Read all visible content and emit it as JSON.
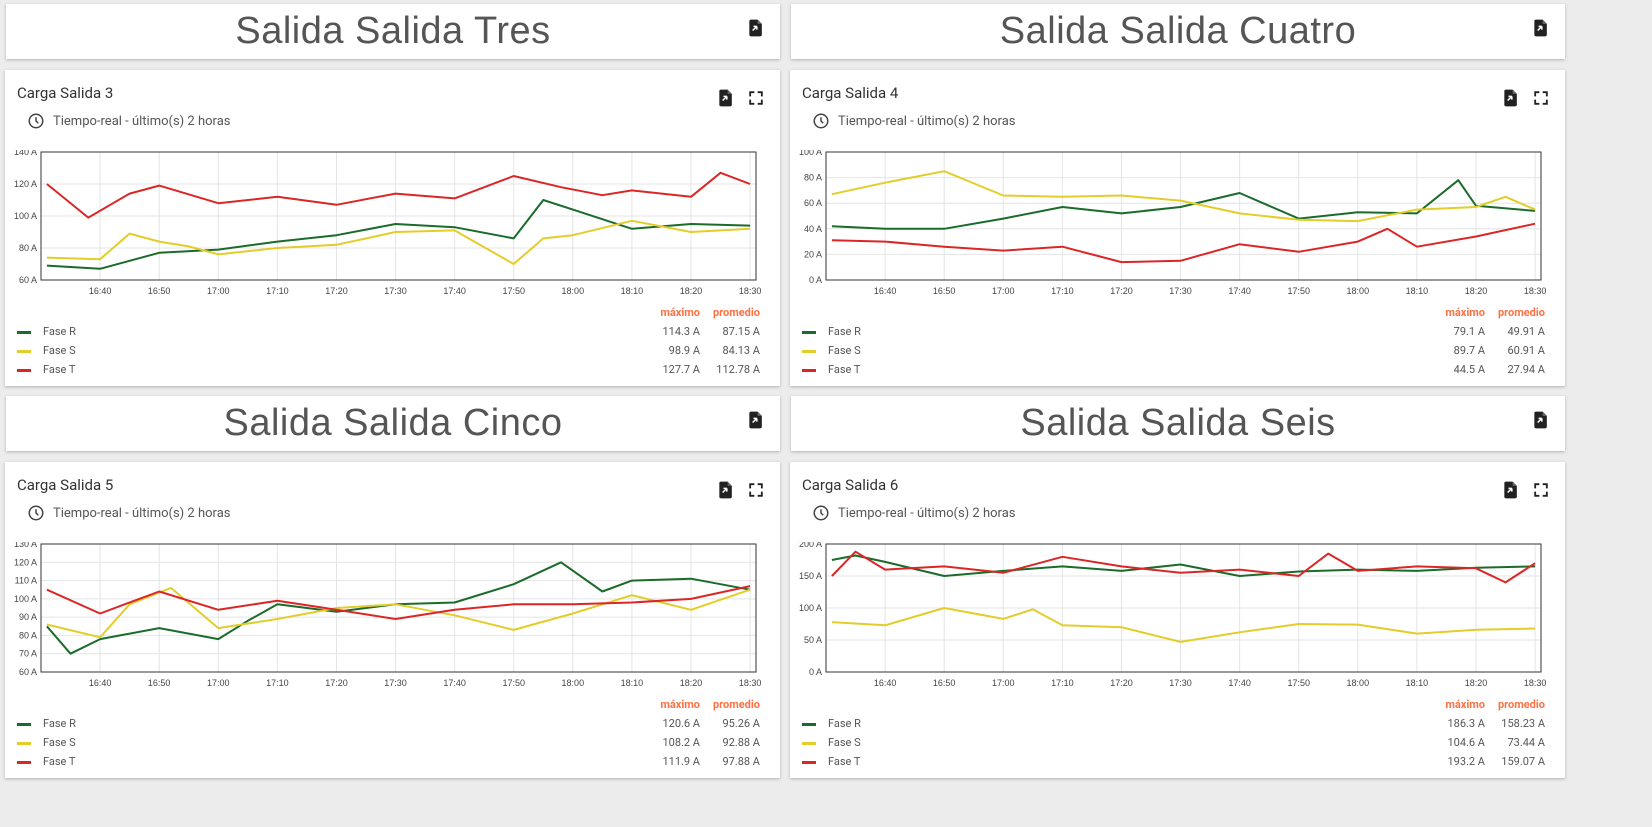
{
  "colors": {
    "R": "#1b6b2a",
    "S": "#e2cd2a",
    "T": "#dc2626"
  },
  "legend_headers": {
    "max": "máximo",
    "avg": "promedio"
  },
  "sections": [
    {
      "title": "Salida Salida Tres"
    },
    {
      "title": "Salida Salida Cuatro"
    },
    {
      "title": "Salida Salida Cinco"
    },
    {
      "title": "Salida Salida Seis"
    }
  ],
  "widgets": [
    {
      "title": "Carga Salida 3",
      "subtitle": "Tiempo-real - último(s) 2 horas",
      "series": [
        {
          "name": "Fase R",
          "max": "114.3 A",
          "avg": "87.15 A"
        },
        {
          "name": "Fase S",
          "max": "98.9 A",
          "avg": "84.13 A"
        },
        {
          "name": "Fase T",
          "max": "127.7 A",
          "avg": "112.78 A"
        }
      ]
    },
    {
      "title": "Carga Salida 4",
      "subtitle": "Tiempo-real - último(s) 2 horas",
      "series": [
        {
          "name": "Fase R",
          "max": "79.1 A",
          "avg": "49.91 A"
        },
        {
          "name": "Fase S",
          "max": "89.7 A",
          "avg": "60.91 A"
        },
        {
          "name": "Fase T",
          "max": "44.5 A",
          "avg": "27.94 A"
        }
      ]
    },
    {
      "title": "Carga Salida 5",
      "subtitle": "Tiempo-real - último(s) 2 horas",
      "series": [
        {
          "name": "Fase R",
          "max": "120.6 A",
          "avg": "95.26 A"
        },
        {
          "name": "Fase S",
          "max": "108.2 A",
          "avg": "92.88 A"
        },
        {
          "name": "Fase T",
          "max": "111.9 A",
          "avg": "97.88 A"
        }
      ]
    },
    {
      "title": "Carga Salida 6",
      "subtitle": "Tiempo-real - último(s) 2 horas",
      "series": [
        {
          "name": "Fase R",
          "max": "186.3 A",
          "avg": "158.23 A"
        },
        {
          "name": "Fase S",
          "max": "104.6 A",
          "avg": "73.44 A"
        },
        {
          "name": "Fase T",
          "max": "193.2 A",
          "avg": "159.07 A"
        }
      ]
    }
  ],
  "chart_data": [
    {
      "type": "line",
      "title": "Carga Salida 3",
      "x_ticks": [
        "16:40",
        "16:50",
        "17:00",
        "17:10",
        "17:20",
        "17:30",
        "17:40",
        "17:50",
        "18:00",
        "18:10",
        "18:20",
        "18:30"
      ],
      "x_range": [
        "16:30",
        "18:31"
      ],
      "y_ticks": [
        "60 A",
        "80 A",
        "100 A",
        "120 A",
        "140 A"
      ],
      "ylim": [
        60,
        140
      ],
      "series": [
        {
          "name": "Fase R",
          "color": "#1b6b2a",
          "x": [
            "16:31",
            "16:40",
            "16:50",
            "17:00",
            "17:10",
            "17:20",
            "17:30",
            "17:40",
            "17:50",
            "17:55",
            "18:00",
            "18:10",
            "18:20",
            "18:30"
          ],
          "y": [
            69,
            67,
            77,
            79,
            84,
            88,
            95,
            93,
            86,
            110,
            104,
            92,
            95,
            94
          ]
        },
        {
          "name": "Fase S",
          "color": "#e2cd2a",
          "x": [
            "16:31",
            "16:40",
            "16:45",
            "16:50",
            "16:55",
            "17:00",
            "17:10",
            "17:20",
            "17:30",
            "17:40",
            "17:50",
            "17:55",
            "18:00",
            "18:10",
            "18:20",
            "18:30"
          ],
          "y": [
            74,
            73,
            89,
            84,
            81,
            76,
            80,
            82,
            90,
            91,
            70,
            86,
            88,
            97,
            90,
            92
          ]
        },
        {
          "name": "Fase T",
          "color": "#dc2626",
          "x": [
            "16:31",
            "16:38",
            "16:45",
            "16:50",
            "17:00",
            "17:10",
            "17:20",
            "17:30",
            "17:40",
            "17:50",
            "17:58",
            "18:05",
            "18:10",
            "18:20",
            "18:25",
            "18:30"
          ],
          "y": [
            120,
            99,
            114,
            119,
            108,
            112,
            107,
            114,
            111,
            125,
            118,
            113,
            116,
            112,
            127,
            120
          ]
        }
      ]
    },
    {
      "type": "line",
      "title": "Carga Salida 4",
      "x_ticks": [
        "16:40",
        "16:50",
        "17:00",
        "17:10",
        "17:20",
        "17:30",
        "17:40",
        "17:50",
        "18:00",
        "18:10",
        "18:20",
        "18:30"
      ],
      "x_range": [
        "16:30",
        "18:31"
      ],
      "y_ticks": [
        "0 A",
        "20 A",
        "40 A",
        "60 A",
        "80 A",
        "100 A"
      ],
      "ylim": [
        0,
        100
      ],
      "series": [
        {
          "name": "Fase R",
          "color": "#1b6b2a",
          "x": [
            "16:31",
            "16:40",
            "16:50",
            "17:00",
            "17:10",
            "17:20",
            "17:30",
            "17:40",
            "17:50",
            "18:00",
            "18:10",
            "18:17",
            "18:20",
            "18:30"
          ],
          "y": [
            42,
            40,
            40,
            48,
            57,
            52,
            57,
            68,
            48,
            53,
            52,
            78,
            58,
            54
          ]
        },
        {
          "name": "Fase S",
          "color": "#e2cd2a",
          "x": [
            "16:31",
            "16:40",
            "16:50",
            "17:00",
            "17:10",
            "17:20",
            "17:30",
            "17:40",
            "17:50",
            "18:00",
            "18:10",
            "18:20",
            "18:25",
            "18:30"
          ],
          "y": [
            67,
            76,
            85,
            66,
            65,
            66,
            62,
            52,
            47,
            46,
            55,
            57,
            65,
            55
          ]
        },
        {
          "name": "Fase T",
          "color": "#dc2626",
          "x": [
            "16:31",
            "16:40",
            "16:50",
            "17:00",
            "17:10",
            "17:20",
            "17:30",
            "17:40",
            "17:50",
            "18:00",
            "18:05",
            "18:10",
            "18:20",
            "18:30"
          ],
          "y": [
            31,
            30,
            26,
            23,
            26,
            14,
            15,
            28,
            22,
            30,
            40,
            26,
            34,
            44
          ]
        }
      ]
    },
    {
      "type": "line",
      "title": "Carga Salida 5",
      "x_ticks": [
        "16:40",
        "16:50",
        "17:00",
        "17:10",
        "17:20",
        "17:30",
        "17:40",
        "17:50",
        "18:00",
        "18:10",
        "18:20",
        "18:30"
      ],
      "x_range": [
        "16:30",
        "18:31"
      ],
      "y_ticks": [
        "60 A",
        "70 A",
        "80 A",
        "90 A",
        "100 A",
        "110 A",
        "120 A",
        "130 A"
      ],
      "ylim": [
        60,
        130
      ],
      "series": [
        {
          "name": "Fase R",
          "color": "#1b6b2a",
          "x": [
            "16:31",
            "16:35",
            "16:40",
            "16:50",
            "17:00",
            "17:05",
            "17:10",
            "17:20",
            "17:30",
            "17:40",
            "17:50",
            "17:58",
            "18:05",
            "18:10",
            "18:20",
            "18:30"
          ],
          "y": [
            85,
            70,
            78,
            84,
            78,
            88,
            97,
            93,
            97,
            98,
            108,
            120,
            104,
            110,
            111,
            105
          ]
        },
        {
          "name": "Fase S",
          "color": "#e2cd2a",
          "x": [
            "16:31",
            "16:40",
            "16:45",
            "16:52",
            "17:00",
            "17:10",
            "17:20",
            "17:30",
            "17:40",
            "17:50",
            "18:00",
            "18:10",
            "18:20",
            "18:30"
          ],
          "y": [
            86,
            79,
            97,
            106,
            84,
            89,
            95,
            97,
            91,
            83,
            92,
            102,
            94,
            105
          ]
        },
        {
          "name": "Fase T",
          "color": "#dc2626",
          "x": [
            "16:31",
            "16:40",
            "16:50",
            "17:00",
            "17:10",
            "17:20",
            "17:30",
            "17:40",
            "17:50",
            "18:00",
            "18:10",
            "18:20",
            "18:30"
          ],
          "y": [
            105,
            92,
            104,
            94,
            99,
            94,
            89,
            94,
            97,
            97,
            98,
            100,
            107
          ]
        }
      ]
    },
    {
      "type": "line",
      "title": "Carga Salida 6",
      "x_ticks": [
        "16:40",
        "16:50",
        "17:00",
        "17:10",
        "17:20",
        "17:30",
        "17:40",
        "17:50",
        "18:00",
        "18:10",
        "18:20",
        "18:30"
      ],
      "x_range": [
        "16:30",
        "18:31"
      ],
      "y_ticks": [
        "0 A",
        "50 A",
        "100 A",
        "150 A",
        "200 A"
      ],
      "ylim": [
        0,
        200
      ],
      "series": [
        {
          "name": "Fase R",
          "color": "#1b6b2a",
          "x": [
            "16:31",
            "16:35",
            "16:40",
            "16:50",
            "17:00",
            "17:10",
            "17:20",
            "17:30",
            "17:40",
            "17:50",
            "18:00",
            "18:10",
            "18:20",
            "18:30"
          ],
          "y": [
            175,
            182,
            172,
            150,
            158,
            165,
            158,
            168,
            150,
            157,
            160,
            158,
            163,
            165
          ]
        },
        {
          "name": "Fase S",
          "color": "#e2cd2a",
          "x": [
            "16:31",
            "16:40",
            "16:50",
            "17:00",
            "17:05",
            "17:10",
            "17:20",
            "17:30",
            "17:40",
            "17:50",
            "18:00",
            "18:10",
            "18:20",
            "18:30"
          ],
          "y": [
            78,
            73,
            100,
            83,
            98,
            73,
            70,
            47,
            62,
            75,
            74,
            60,
            66,
            68
          ]
        },
        {
          "name": "Fase T",
          "color": "#dc2626",
          "x": [
            "16:31",
            "16:35",
            "16:40",
            "16:50",
            "17:00",
            "17:10",
            "17:20",
            "17:30",
            "17:40",
            "17:50",
            "17:55",
            "18:00",
            "18:10",
            "18:20",
            "18:25",
            "18:30"
          ],
          "y": [
            150,
            188,
            160,
            165,
            155,
            180,
            165,
            155,
            160,
            150,
            185,
            158,
            165,
            162,
            140,
            170
          ]
        }
      ]
    }
  ]
}
